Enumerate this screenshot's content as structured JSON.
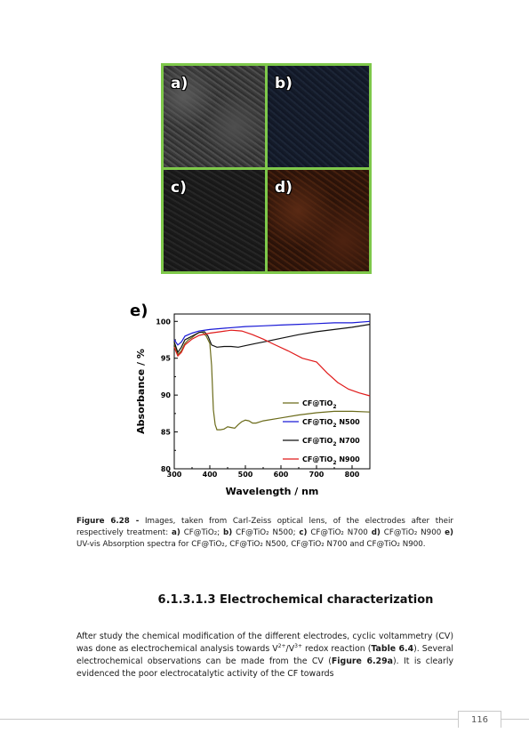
{
  "panels": {
    "a": "a)",
    "b": "b)",
    "c": "c)",
    "d": "d)",
    "e": "e)"
  },
  "chart_data": {
    "type": "line",
    "title": "",
    "xlabel": "Wavelength / nm",
    "ylabel": "Absorbance / %",
    "xlim": [
      300,
      850
    ],
    "ylim": [
      80,
      101
    ],
    "xticks": [
      300,
      400,
      500,
      600,
      700,
      800
    ],
    "yticks": [
      80,
      85,
      90,
      95,
      100
    ],
    "legend_position": "lower-right",
    "series": [
      {
        "name": "CF@TiO2",
        "name_main": "CF@TiO",
        "name_sub": "2",
        "name_suffix": "",
        "color": "#6b6b1a",
        "points": [
          [
            300,
            97.0
          ],
          [
            310,
            95.5
          ],
          [
            320,
            96.0
          ],
          [
            330,
            97.0
          ],
          [
            340,
            97.5
          ],
          [
            350,
            97.8
          ],
          [
            360,
            98.2
          ],
          [
            370,
            98.5
          ],
          [
            380,
            98.5
          ],
          [
            390,
            98.0
          ],
          [
            400,
            97.0
          ],
          [
            405,
            94.0
          ],
          [
            410,
            88.0
          ],
          [
            415,
            86.0
          ],
          [
            420,
            85.3
          ],
          [
            430,
            85.3
          ],
          [
            440,
            85.4
          ],
          [
            450,
            85.7
          ],
          [
            460,
            85.6
          ],
          [
            470,
            85.5
          ],
          [
            480,
            86.0
          ],
          [
            490,
            86.4
          ],
          [
            500,
            86.6
          ],
          [
            510,
            86.5
          ],
          [
            520,
            86.2
          ],
          [
            530,
            86.2
          ],
          [
            550,
            86.5
          ],
          [
            600,
            86.9
          ],
          [
            650,
            87.3
          ],
          [
            700,
            87.6
          ],
          [
            750,
            87.8
          ],
          [
            800,
            87.8
          ],
          [
            850,
            87.7
          ]
        ]
      },
      {
        "name": "CF@TiO2 N500",
        "name_main": "CF@TiO",
        "name_sub": "2",
        "name_suffix": " N500",
        "color": "#1a1ad6",
        "points": [
          [
            300,
            97.5
          ],
          [
            310,
            96.8
          ],
          [
            320,
            97.2
          ],
          [
            330,
            98.0
          ],
          [
            350,
            98.4
          ],
          [
            370,
            98.7
          ],
          [
            400,
            98.9
          ],
          [
            450,
            99.1
          ],
          [
            500,
            99.3
          ],
          [
            550,
            99.4
          ],
          [
            600,
            99.5
          ],
          [
            650,
            99.6
          ],
          [
            700,
            99.7
          ],
          [
            750,
            99.8
          ],
          [
            800,
            99.8
          ],
          [
            850,
            100.0
          ]
        ]
      },
      {
        "name": "CF@TiO2 N700",
        "name_main": "CF@TiO",
        "name_sub": "2",
        "name_suffix": " N700",
        "color": "#111111",
        "points": [
          [
            300,
            97.2
          ],
          [
            310,
            95.8
          ],
          [
            320,
            96.5
          ],
          [
            330,
            97.5
          ],
          [
            350,
            98.0
          ],
          [
            370,
            98.5
          ],
          [
            385,
            98.6
          ],
          [
            395,
            98.0
          ],
          [
            405,
            96.8
          ],
          [
            420,
            96.5
          ],
          [
            440,
            96.6
          ],
          [
            460,
            96.6
          ],
          [
            480,
            96.5
          ],
          [
            500,
            96.7
          ],
          [
            530,
            97.0
          ],
          [
            560,
            97.3
          ],
          [
            600,
            97.7
          ],
          [
            650,
            98.2
          ],
          [
            700,
            98.6
          ],
          [
            750,
            98.9
          ],
          [
            800,
            99.2
          ],
          [
            850,
            99.6
          ]
        ]
      },
      {
        "name": "CF@TiO2 N900",
        "name_main": "CF@TiO",
        "name_sub": "2",
        "name_suffix": " N900",
        "color": "#e01a1a",
        "points": [
          [
            300,
            96.5
          ],
          [
            310,
            95.3
          ],
          [
            320,
            95.8
          ],
          [
            330,
            96.8
          ],
          [
            350,
            97.6
          ],
          [
            370,
            98.1
          ],
          [
            400,
            98.4
          ],
          [
            430,
            98.6
          ],
          [
            460,
            98.8
          ],
          [
            490,
            98.7
          ],
          [
            520,
            98.2
          ],
          [
            550,
            97.6
          ],
          [
            580,
            96.9
          ],
          [
            620,
            96.0
          ],
          [
            660,
            95.0
          ],
          [
            700,
            94.5
          ],
          [
            730,
            93.0
          ],
          [
            760,
            91.7
          ],
          [
            790,
            90.8
          ],
          [
            820,
            90.3
          ],
          [
            850,
            89.9
          ]
        ]
      }
    ]
  },
  "caption": {
    "figure_label": "Figure 6.28 -",
    "part1": " Images, taken from Carl-Zeiss optical lens, of the electrodes after their respectively treatment: ",
    "a": "a)",
    "a_text": " CF@TiO₂; ",
    "b": "b)",
    "b_text": " CF@TiO₂ N500; ",
    "c": "c)",
    "c_text": " CF@TiO₂ N700 ",
    "d": "d)",
    "d_text": " CF@TiO₂ N900 ",
    "e": "e)",
    "e_text": " UV-vis Absorption spectra for CF@TiO₂, CF@TiO₂ N500, CF@TiO₂ N700 and CF@TiO₂ N900."
  },
  "section_heading": "6.1.3.1.3 Electrochemical characterization",
  "body": {
    "t1": "After study the chemical modification of the different electrodes, cyclic voltammetry (CV) was done as electrochemical analysis towards V",
    "sup1": "2+",
    "t2": "/V",
    "sup2": "3+",
    "t3": " redox reaction (",
    "ref1": "Table 6.4",
    "t4": "). Several electrochemical observations can be made from the CV (",
    "ref2": "Figure 6.29a",
    "t5": "). It is clearly evidenced the poor electrocatalytic activity of the CF towards"
  },
  "page_number": "116"
}
